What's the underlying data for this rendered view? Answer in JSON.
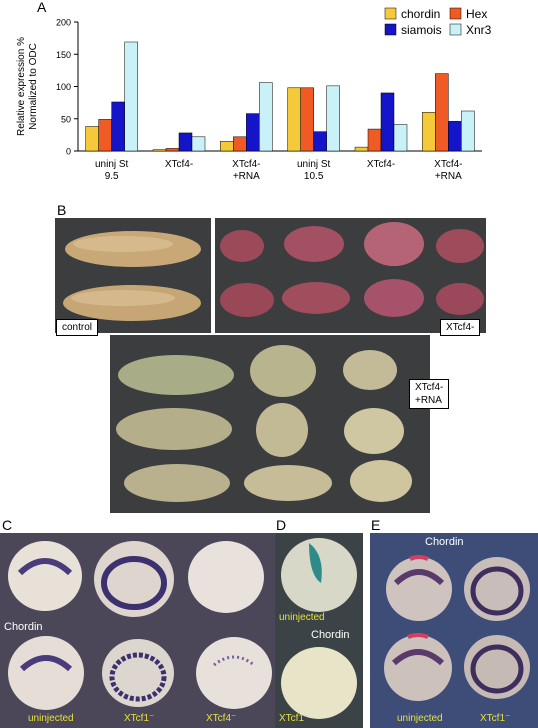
{
  "panels": {
    "a": "A",
    "b": "B",
    "c": "C",
    "d": "D",
    "e": "E"
  },
  "chart_data": {
    "type": "bar",
    "ylabel": "Relative expression %\nNormalized to ODC",
    "ylim": [
      0,
      200
    ],
    "yticks": [
      0,
      50,
      100,
      150,
      200
    ],
    "categories": [
      "uninj St\n9.5",
      "XTcf4-",
      "XTcf4-\n+RNA",
      "uninj St\n10.5",
      "XTcf4-",
      "XTcf4-\n+RNA"
    ],
    "series": [
      {
        "name": "chordin",
        "color": "#f6c93b",
        "values": [
          38,
          2,
          15,
          98,
          6,
          60
        ]
      },
      {
        "name": "Hex",
        "color": "#f05a24",
        "values": [
          49,
          4,
          22,
          98,
          34,
          120
        ]
      },
      {
        "name": "siamois",
        "color": "#1414c8",
        "values": [
          76,
          28,
          58,
          30,
          90,
          46
        ]
      },
      {
        "name": "Xnr3",
        "color": "#c9f1f8",
        "values": [
          169,
          22,
          106,
          101,
          41,
          62
        ]
      }
    ],
    "legend_position": "top-right"
  },
  "panel_b": {
    "label_control": "control",
    "label_knockdown": "XTcf4-",
    "label_rescue": "XTcf4-\n+RNA"
  },
  "panel_c": {
    "chordin": "Chordin",
    "uninjected": "uninjected",
    "xtcf1": "XTcf1⁻",
    "xtcf4": "XTcf4⁻"
  },
  "panel_d": {
    "uninjected": "uninjected",
    "chordin": "Chordin",
    "xtcf1": "XTcf1⁻"
  },
  "panel_e": {
    "chordin": "Chordin",
    "uninjected": "uninjected",
    "xtcf1": "XTcf1⁻"
  }
}
